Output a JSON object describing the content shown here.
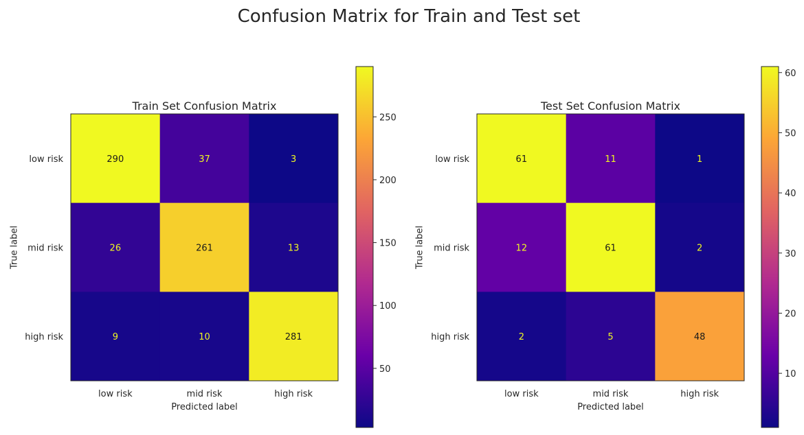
{
  "figure": {
    "title": "Confusion Matrix for Train and Test set"
  },
  "colormap": {
    "name": "plasma",
    "stops": [
      "#0d0887",
      "#6a00a8",
      "#b12a90",
      "#e16462",
      "#fca636",
      "#f0f921"
    ]
  },
  "chart_data": [
    {
      "type": "heatmap",
      "title": "Train Set Confusion Matrix",
      "xlabel": "Predicted label",
      "ylabel": "True label",
      "x_categories": [
        "low risk",
        "mid risk",
        "high risk"
      ],
      "y_categories": [
        "low risk",
        "mid risk",
        "high risk"
      ],
      "values": [
        [
          290,
          37,
          3
        ],
        [
          26,
          261,
          13
        ],
        [
          9,
          10,
          281
        ]
      ],
      "colorbar": {
        "range": [
          3,
          290
        ],
        "ticks": [
          50,
          100,
          150,
          200,
          250
        ]
      },
      "grid": false
    },
    {
      "type": "heatmap",
      "title": "Test Set Confusion Matrix",
      "xlabel": "Predicted label",
      "ylabel": "True label",
      "x_categories": [
        "low risk",
        "mid risk",
        "high risk"
      ],
      "y_categories": [
        "low risk",
        "mid risk",
        "high risk"
      ],
      "values": [
        [
          61,
          11,
          1
        ],
        [
          12,
          61,
          2
        ],
        [
          2,
          5,
          48
        ]
      ],
      "colorbar": {
        "range": [
          1,
          61
        ],
        "ticks": [
          10,
          20,
          30,
          40,
          50,
          60
        ]
      },
      "grid": false
    }
  ]
}
